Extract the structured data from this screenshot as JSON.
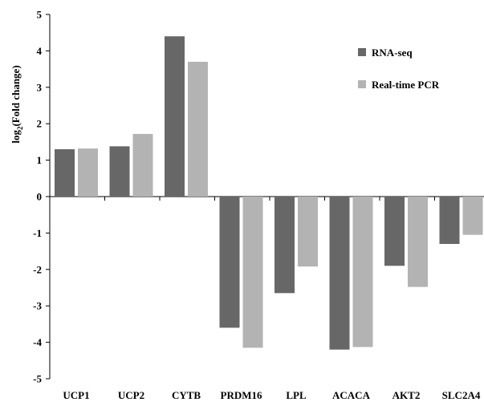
{
  "chart_data": {
    "type": "bar",
    "ylabel_main": "log",
    "ylabel_sub": "2",
    "ylabel_rest": "(Fold change)",
    "categories": [
      "UCP1",
      "UCP2",
      "CYTB",
      "PRDM16",
      "LPL",
      "ACACA",
      "AKT2",
      "SLC2A4"
    ],
    "series": [
      {
        "name": "RNA-seq",
        "color": "#676767",
        "values": [
          1.3,
          1.38,
          4.4,
          -3.6,
          -2.65,
          -4.2,
          -1.9,
          -1.3
        ]
      },
      {
        "name": "Real-time PCR",
        "color": "#b3b3b3",
        "values": [
          1.32,
          1.72,
          3.7,
          -4.15,
          -1.92,
          -4.13,
          -2.48,
          -1.05
        ]
      }
    ],
    "ylim": [
      -5,
      5
    ],
    "yticks": [
      "5",
      "4",
      "3",
      "2",
      "1",
      "0",
      "-1",
      "-2",
      "-3",
      "-4",
      "-5"
    ],
    "grid": false,
    "legend_position": "top-right"
  }
}
